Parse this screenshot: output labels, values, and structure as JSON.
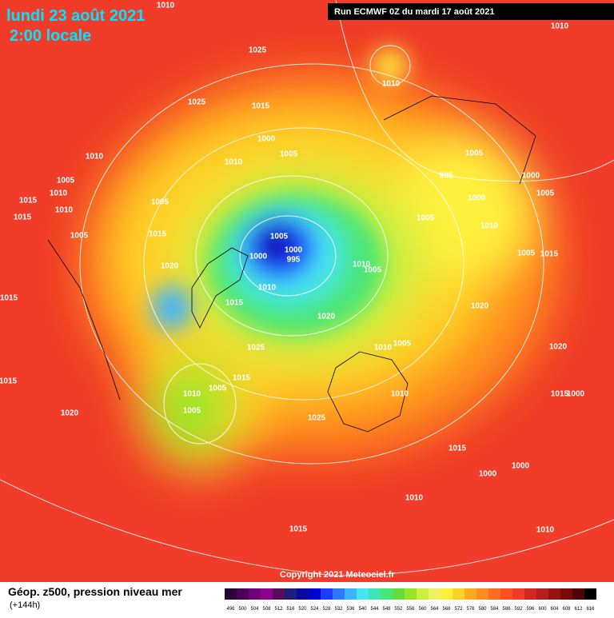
{
  "header": {
    "date": "lundi 23 août 2021",
    "time": "2:00 locale",
    "run": "Run ECMWF 0Z du mardi 17 août 2021"
  },
  "footer": {
    "copyright": "Copyright 2021 Meteociel.fr",
    "product": "Géop. z500, pression niveau mer",
    "lead": "(+144h)"
  },
  "legend": {
    "values": [
      496,
      500,
      504,
      508,
      512,
      516,
      520,
      524,
      528,
      532,
      536,
      540,
      544,
      548,
      552,
      556,
      560,
      564,
      568,
      572,
      576,
      580,
      584,
      588,
      592,
      596,
      600,
      604,
      608,
      612,
      616
    ],
    "colors": [
      "#2b0035",
      "#4a0058",
      "#6e007a",
      "#8c008c",
      "#5a0a5a",
      "#1e1e78",
      "#0a0aa0",
      "#0000d2",
      "#1e3cff",
      "#2e78ff",
      "#3cb4ff",
      "#46e6f0",
      "#3ce6b4",
      "#46e678",
      "#64dc3c",
      "#96e628",
      "#c8f03c",
      "#f0f064",
      "#fff03c",
      "#ffd228",
      "#ffaa1e",
      "#ff8c1e",
      "#ff6e1e",
      "#ff501e",
      "#f03c28",
      "#d2281e",
      "#b41e1e",
      "#961414",
      "#780a0a",
      "#500505",
      "#000000"
    ]
  },
  "isobars": {
    "labels": [
      1010,
      1025,
      1010,
      1010,
      1025,
      1015,
      1000,
      1005,
      1010,
      1010,
      1005,
      995,
      1000,
      1015,
      1005,
      1010,
      1015,
      1010,
      1005,
      1005,
      1015,
      1005,
      1000,
      1010,
      1005,
      1005,
      1000,
      995,
      1000,
      1020,
      1010,
      1005,
      1010,
      1015,
      1020,
      1020,
      1005,
      1015,
      1015,
      1025,
      1010,
      1005,
      1010,
      1005,
      1015,
      1005,
      1020,
      1025,
      1010,
      1015,
      1000,
      1000,
      1010,
      1015,
      1010,
      1015,
      1000,
      1015,
      1020
    ]
  }
}
